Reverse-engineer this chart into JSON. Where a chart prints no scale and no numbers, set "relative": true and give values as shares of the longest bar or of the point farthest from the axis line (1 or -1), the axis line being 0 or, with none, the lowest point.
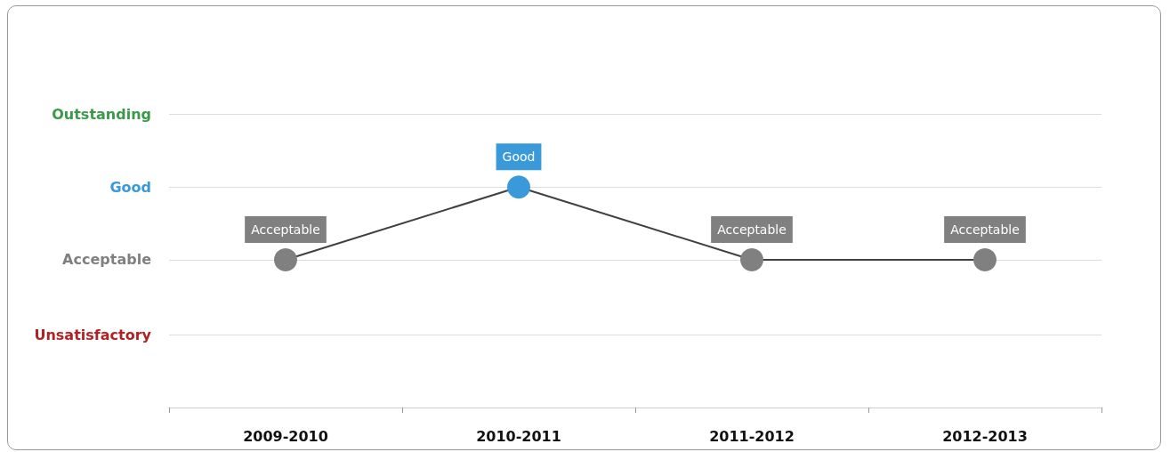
{
  "chart_data": {
    "type": "line",
    "relative": true,
    "categories": [
      "2009-2010",
      "2010-2011",
      "2011-2012",
      "2012-2013"
    ],
    "values": [
      0.67,
      1,
      0.67,
      0.67
    ],
    "colors": [
      "#808080",
      "#3a9ad9",
      "#808080",
      "#808080"
    ],
    "color": "#404040",
    "annotations": [
      {
        "text": "Acceptable",
        "x": "2009-2010",
        "y": 0.67
      },
      {
        "text": "Good",
        "x": "2010-2011",
        "y": 1
      },
      {
        "text": "Acceptable",
        "x": "2011-2012",
        "y": 0.67
      },
      {
        "text": "Acceptable",
        "x": "2012-2013",
        "y": 0.67
      }
    ],
    "ref_lines": [
      {
        "axis": "y",
        "value": 0.33,
        "label": "Unsatisfactory",
        "color": "#dddddd"
      },
      {
        "axis": "y",
        "value": 0.67,
        "label": "Acceptable",
        "color": "#dddddd"
      },
      {
        "axis": "y",
        "value": 1,
        "label": "Good",
        "color": "#dddddd"
      },
      {
        "axis": "y",
        "value": 1.33,
        "label": "Outstanding",
        "color": "#dddddd"
      }
    ],
    "marker": "circle",
    "line_style": "solid"
  }
}
